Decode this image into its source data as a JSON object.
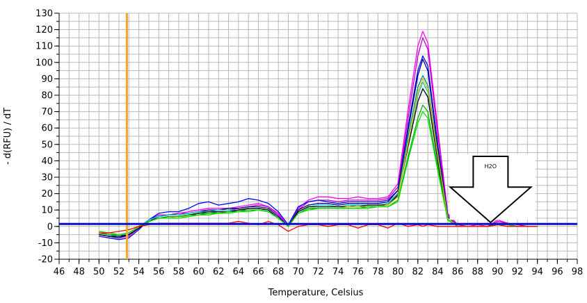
{
  "chart_data": {
    "type": "line",
    "xlabel": "Temperature, Celsius",
    "ylabel": "- d(RFU) / dT",
    "xlim": [
      46,
      98
    ],
    "ylim": [
      -20,
      130
    ],
    "x_ticks": [
      46,
      48,
      50,
      52,
      54,
      56,
      58,
      60,
      62,
      64,
      66,
      68,
      70,
      72,
      74,
      76,
      78,
      80,
      82,
      84,
      86,
      88,
      90,
      92,
      94,
      96,
      98
    ],
    "x_minor_step": 1,
    "y_ticks": [
      -20,
      -10,
      0,
      10,
      20,
      30,
      40,
      50,
      60,
      70,
      80,
      90,
      100,
      110,
      120,
      130
    ],
    "y_minor_step": 5,
    "grid": true,
    "threshold": {
      "y": 1.5,
      "color": "#1010c8"
    },
    "marker_line": {
      "x": 52.8,
      "color": "#f5a623"
    },
    "annotation": {
      "text": "H2O",
      "x": 89.3,
      "y": 2
    },
    "colors": {
      "pink": "#ff00ff",
      "magenta": "#c000c0",
      "blue": "#0000ff",
      "navy": "#000080",
      "teal": "#008888",
      "cyan": "#00c8c8",
      "green": "#00b000",
      "lime": "#00e000",
      "black": "#000000",
      "yellow": "#e0c000",
      "red": "#ff0000"
    },
    "x": [
      50,
      51,
      52,
      53,
      54,
      55,
      56,
      57,
      58,
      59,
      60,
      61,
      62,
      63,
      64,
      65,
      66,
      67,
      68,
      69,
      70,
      71,
      72,
      73,
      74,
      75,
      76,
      77,
      78,
      79,
      80,
      81,
      82,
      82.5,
      83,
      84,
      85,
      86,
      87,
      88,
      89,
      90,
      91,
      92,
      93,
      94
    ],
    "series": [
      {
        "color": "pink",
        "values": [
          -5,
          -6,
          -7,
          -6,
          -1,
          3,
          6,
          7,
          8,
          9,
          10,
          11,
          11,
          11,
          12,
          13,
          14,
          12,
          8,
          0,
          11,
          16,
          18,
          18,
          17,
          17,
          18,
          17,
          17,
          18,
          26,
          70,
          110,
          119,
          112,
          60,
          8,
          1,
          0,
          1,
          0,
          4,
          2,
          1,
          0,
          0
        ]
      },
      {
        "color": "magenta",
        "values": [
          -4,
          -5,
          -6,
          -6,
          -1,
          4,
          7,
          7,
          8,
          8,
          9,
          10,
          10,
          10,
          11,
          12,
          13,
          12,
          7,
          0,
          10,
          15,
          16,
          16,
          15,
          16,
          16,
          16,
          16,
          17,
          24,
          65,
          104,
          115,
          108,
          56,
          7,
          1,
          0,
          0,
          0,
          3,
          2,
          1,
          0,
          0
        ]
      },
      {
        "color": "blue",
        "values": [
          -6,
          -7,
          -8,
          -7,
          -2,
          4,
          8,
          9,
          9,
          11,
          14,
          15,
          13,
          14,
          15,
          17,
          16,
          14,
          9,
          1,
          12,
          15,
          16,
          15,
          14,
          15,
          15,
          15,
          15,
          16,
          22,
          60,
          95,
          104,
          98,
          50,
          6,
          0,
          0,
          0,
          0,
          2,
          1,
          0,
          0,
          0
        ]
      },
      {
        "color": "navy",
        "values": [
          -5,
          -6,
          -7,
          -5,
          -1,
          3,
          6,
          7,
          7,
          8,
          9,
          10,
          10,
          11,
          11,
          12,
          12,
          11,
          6,
          0,
          10,
          13,
          14,
          14,
          13,
          14,
          14,
          14,
          14,
          15,
          22,
          58,
          92,
          102,
          95,
          48,
          6,
          0,
          0,
          0,
          0,
          2,
          1,
          0,
          0,
          0
        ]
      },
      {
        "color": "teal",
        "values": [
          -4,
          -5,
          -5,
          -4,
          0,
          3,
          5,
          6,
          6,
          7,
          8,
          8,
          9,
          9,
          10,
          10,
          10,
          9,
          5,
          0,
          9,
          12,
          12,
          12,
          12,
          12,
          13,
          13,
          13,
          14,
          20,
          54,
          85,
          92,
          86,
          45,
          5,
          0,
          0,
          0,
          0,
          1,
          1,
          0,
          0,
          0
        ]
      },
      {
        "color": "cyan",
        "values": [
          -4,
          -5,
          -6,
          -4,
          0,
          4,
          6,
          7,
          7,
          8,
          9,
          9,
          10,
          10,
          10,
          11,
          11,
          10,
          5,
          0,
          9,
          12,
          13,
          13,
          12,
          13,
          13,
          13,
          13,
          14,
          19,
          50,
          80,
          88,
          82,
          42,
          5,
          0,
          0,
          0,
          0,
          1,
          1,
          0,
          0,
          0
        ]
      },
      {
        "color": "black",
        "values": [
          -5,
          -6,
          -6,
          -5,
          -1,
          3,
          5,
          6,
          6,
          7,
          8,
          9,
          9,
          9,
          10,
          11,
          11,
          10,
          5,
          0,
          9,
          12,
          12,
          12,
          12,
          12,
          12,
          13,
          13,
          13,
          19,
          48,
          76,
          84,
          79,
          40,
          4,
          0,
          0,
          0,
          0,
          1,
          1,
          0,
          0,
          0
        ]
      },
      {
        "color": "yellow",
        "values": [
          -3,
          -4,
          -5,
          -4,
          0,
          3,
          5,
          5,
          6,
          6,
          7,
          8,
          8,
          9,
          9,
          10,
          10,
          9,
          5,
          0,
          8,
          11,
          11,
          11,
          11,
          12,
          12,
          12,
          12,
          13,
          18,
          50,
          82,
          90,
          84,
          43,
          5,
          0,
          0,
          0,
          0,
          1,
          1,
          0,
          0,
          0
        ]
      },
      {
        "color": "green",
        "values": [
          -4,
          -5,
          -5,
          -4,
          0,
          3,
          5,
          6,
          6,
          7,
          7,
          8,
          8,
          9,
          9,
          10,
          10,
          9,
          5,
          0,
          8,
          11,
          11,
          11,
          11,
          11,
          11,
          12,
          12,
          12,
          16,
          42,
          66,
          74,
          70,
          36,
          4,
          0,
          0,
          0,
          0,
          1,
          1,
          0,
          0,
          0
        ]
      },
      {
        "color": "lime",
        "values": [
          -3,
          -4,
          -5,
          -4,
          0,
          3,
          5,
          5,
          5,
          6,
          7,
          7,
          8,
          8,
          9,
          9,
          10,
          9,
          5,
          0,
          8,
          10,
          11,
          11,
          11,
          11,
          11,
          11,
          12,
          12,
          15,
          40,
          63,
          70,
          66,
          34,
          4,
          0,
          0,
          0,
          0,
          1,
          1,
          0,
          0,
          0
        ]
      },
      {
        "color": "red",
        "values": [
          -4,
          -4,
          -3,
          -2,
          0,
          1,
          2,
          2,
          2,
          2,
          2,
          2,
          2,
          2,
          3,
          2,
          1,
          3,
          1,
          -3,
          0,
          1,
          1,
          0,
          1,
          1,
          -1,
          1,
          1,
          -1,
          2,
          0,
          1,
          0,
          1,
          0,
          0,
          0,
          0,
          0,
          0,
          1,
          0,
          0,
          0,
          0
        ]
      }
    ]
  }
}
